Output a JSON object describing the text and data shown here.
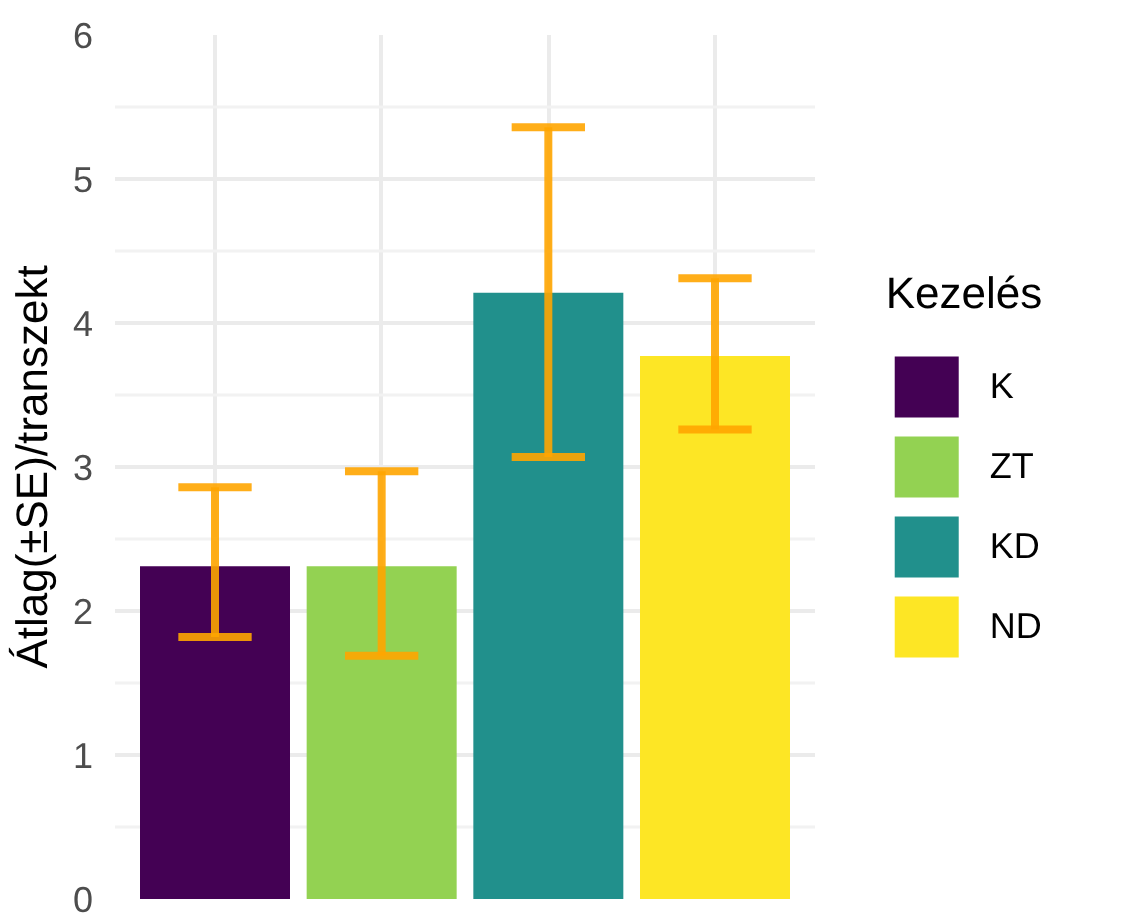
{
  "chart_data": {
    "type": "bar",
    "ylabel": "Átlag(±SE)/transzekt",
    "legend_title": "Kezelés",
    "categories": [
      null,
      null,
      null,
      null
    ],
    "series": [
      {
        "name": "K",
        "color": "#440154",
        "values": [
          2.31,
          null,
          null,
          null
        ],
        "errors": [
          [
            1.82,
            2.86
          ],
          null,
          null,
          null
        ]
      },
      {
        "name": "ZT",
        "color": "#93d252",
        "values": [
          null,
          2.31,
          null,
          null
        ],
        "errors": [
          null,
          [
            1.69,
            2.97
          ],
          null,
          null
        ]
      },
      {
        "name": "KD",
        "color": "#21908c",
        "values": [
          null,
          null,
          4.21,
          null
        ],
        "errors": [
          null,
          null,
          [
            3.07,
            5.36
          ],
          null
        ]
      },
      {
        "name": "ND",
        "color": "#fde625",
        "values": [
          null,
          null,
          null,
          3.77
        ],
        "errors": [
          null,
          null,
          null,
          [
            3.26,
            4.31
          ]
        ]
      }
    ],
    "ylim": [
      0,
      6
    ],
    "yticks": [
      0,
      1,
      2,
      3,
      4,
      5,
      6
    ],
    "grid": true,
    "legend": "right",
    "tick_labels": "y"
  }
}
